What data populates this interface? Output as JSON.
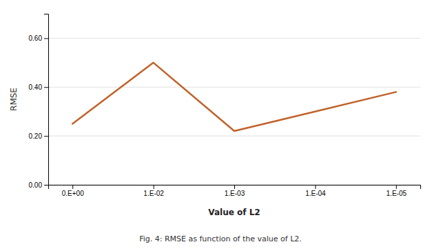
{
  "chart_data": {
    "type": "line",
    "categories": [
      "0.E+00",
      "1.E-02",
      "1.E-03",
      "1.E-04",
      "1.E-05"
    ],
    "values": [
      0.25,
      0.5,
      0.22,
      0.3,
      0.38
    ],
    "color": "#C0622A",
    "x_label": "Value of L2",
    "y_label": "RMSE",
    "annotations": [
      "Fig. 4: RMSE as function of the value of L2."
    ],
    "ylim": [
      0.0,
      0.7
    ],
    "yticks": [
      {
        "value": 0.0,
        "label": "0.00"
      },
      {
        "value": 0.2,
        "label": "0.20"
      },
      {
        "value": 0.4,
        "label": "0.40"
      },
      {
        "value": 0.6,
        "label": "0.60"
      }
    ],
    "grid": true
  }
}
